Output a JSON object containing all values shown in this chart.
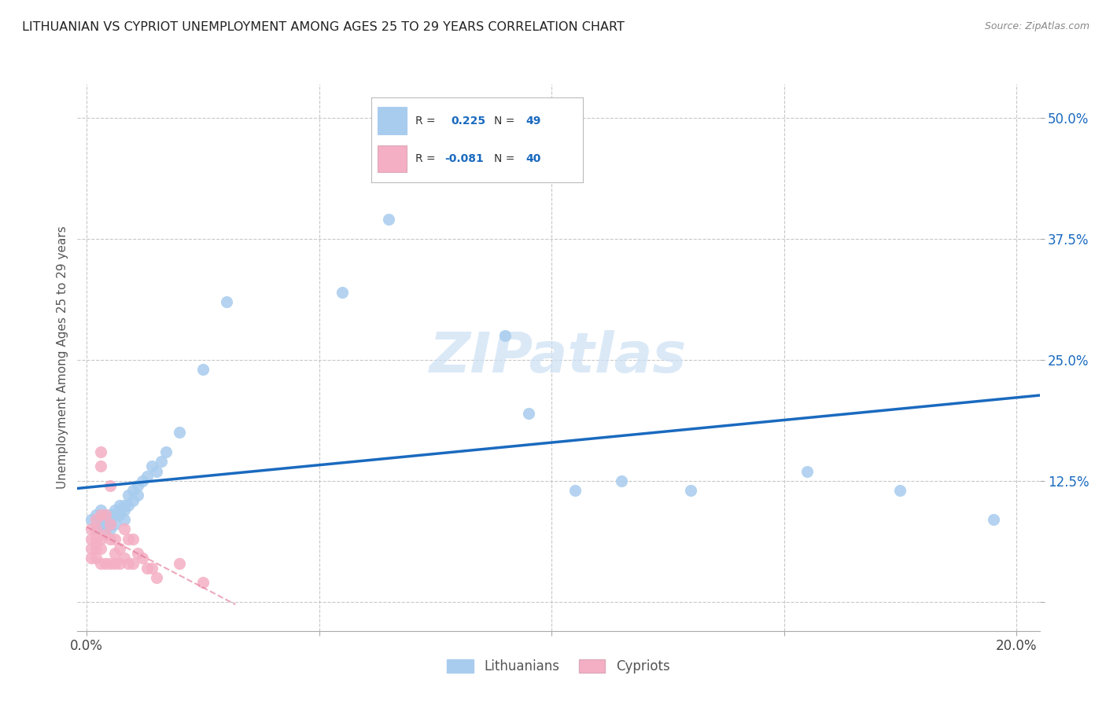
{
  "title": "LITHUANIAN VS CYPRIOT UNEMPLOYMENT AMONG AGES 25 TO 29 YEARS CORRELATION CHART",
  "source": "Source: ZipAtlas.com",
  "ylabel": "Unemployment Among Ages 25 to 29 years",
  "xlim": [
    -0.002,
    0.205
  ],
  "ylim": [
    -0.03,
    0.535
  ],
  "xticks": [
    0.0,
    0.05,
    0.1,
    0.15,
    0.2
  ],
  "xticklabels": [
    "0.0%",
    "",
    "",
    "",
    "20.0%"
  ],
  "yticks": [
    0.0,
    0.125,
    0.25,
    0.375,
    0.5
  ],
  "yticklabels": [
    "",
    "12.5%",
    "25.0%",
    "37.5%",
    "50.0%"
  ],
  "blue_R": "0.225",
  "blue_N": "49",
  "pink_R": "-0.081",
  "pink_N": "40",
  "blue_color": "#a8ccee",
  "pink_color": "#f4afc4",
  "blue_line_color": "#1a6abf",
  "pink_line_color": "#e07090",
  "pink_dash_color": "#e8b0c8",
  "grid_color": "#c8c8c8",
  "watermark_color": "#cce0f5",
  "blue_x": [
    0.001,
    0.002,
    0.002,
    0.003,
    0.003,
    0.003,
    0.004,
    0.004,
    0.004,
    0.004,
    0.005,
    0.005,
    0.005,
    0.005,
    0.006,
    0.006,
    0.006,
    0.007,
    0.007,
    0.007,
    0.008,
    0.008,
    0.008,
    0.009,
    0.009,
    0.01,
    0.01,
    0.011,
    0.011,
    0.012,
    0.013,
    0.014,
    0.015,
    0.016,
    0.017,
    0.02,
    0.025,
    0.03,
    0.055,
    0.065,
    0.075,
    0.09,
    0.095,
    0.105,
    0.115,
    0.13,
    0.155,
    0.175,
    0.195
  ],
  "blue_y": [
    0.085,
    0.09,
    0.075,
    0.08,
    0.095,
    0.085,
    0.09,
    0.08,
    0.085,
    0.075,
    0.09,
    0.085,
    0.075,
    0.08,
    0.095,
    0.09,
    0.08,
    0.1,
    0.095,
    0.09,
    0.1,
    0.095,
    0.085,
    0.1,
    0.11,
    0.105,
    0.115,
    0.12,
    0.11,
    0.125,
    0.13,
    0.14,
    0.135,
    0.145,
    0.155,
    0.175,
    0.24,
    0.31,
    0.32,
    0.395,
    0.44,
    0.275,
    0.195,
    0.115,
    0.125,
    0.115,
    0.135,
    0.115,
    0.085
  ],
  "pink_x": [
    0.001,
    0.001,
    0.001,
    0.001,
    0.002,
    0.002,
    0.002,
    0.002,
    0.002,
    0.003,
    0.003,
    0.003,
    0.003,
    0.003,
    0.003,
    0.004,
    0.004,
    0.004,
    0.005,
    0.005,
    0.005,
    0.005,
    0.006,
    0.006,
    0.006,
    0.007,
    0.007,
    0.008,
    0.008,
    0.009,
    0.009,
    0.01,
    0.01,
    0.011,
    0.012,
    0.013,
    0.014,
    0.015,
    0.02,
    0.025
  ],
  "pink_y": [
    0.075,
    0.065,
    0.055,
    0.045,
    0.085,
    0.075,
    0.065,
    0.055,
    0.045,
    0.155,
    0.14,
    0.09,
    0.065,
    0.055,
    0.04,
    0.09,
    0.07,
    0.04,
    0.12,
    0.08,
    0.065,
    0.04,
    0.065,
    0.05,
    0.04,
    0.055,
    0.04,
    0.075,
    0.045,
    0.065,
    0.04,
    0.065,
    0.04,
    0.05,
    0.045,
    0.035,
    0.035,
    0.025,
    0.04,
    0.02
  ]
}
